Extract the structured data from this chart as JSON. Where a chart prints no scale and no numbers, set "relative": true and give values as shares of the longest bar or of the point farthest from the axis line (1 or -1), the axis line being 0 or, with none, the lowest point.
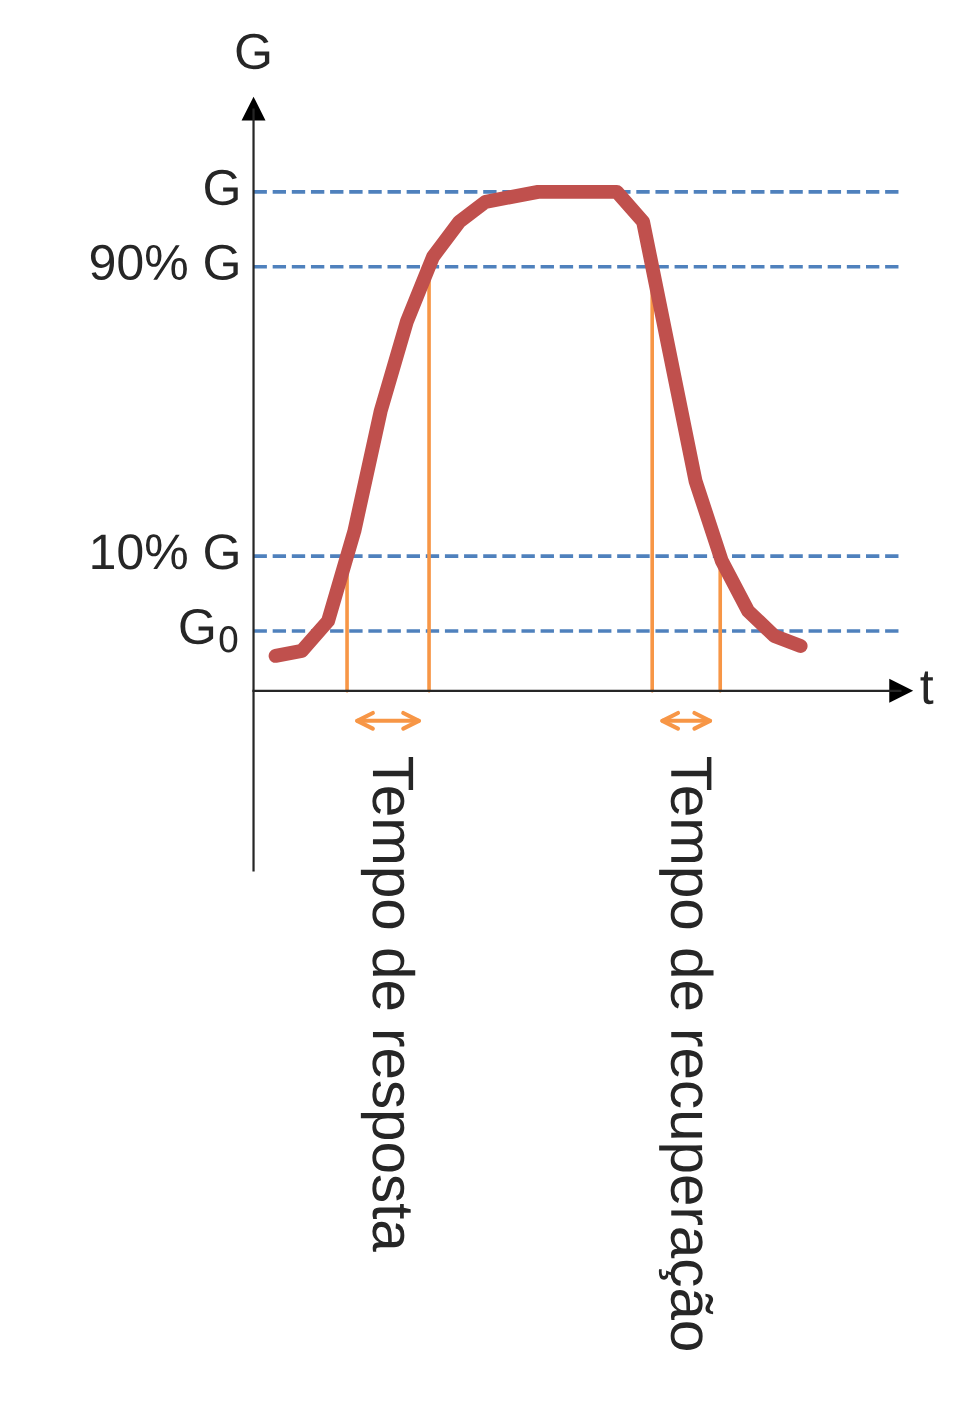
{
  "chart_data": {
    "type": "line",
    "relative": true,
    "xlabel": "t",
    "ylabel": "G",
    "categories": [
      null,
      null,
      null,
      null,
      null,
      null,
      null,
      null,
      null,
      null,
      null,
      null,
      null,
      null,
      null,
      null,
      null,
      null,
      null,
      null,
      null
    ],
    "series": [
      {
        "color": "#c0504d",
        "values": [
          0.07,
          0.08,
          0.14,
          0.32,
          0.56,
          0.74,
          0.87,
          0.94,
          0.98,
          0.99,
          1.0,
          1.0,
          1.0,
          1.0,
          0.94,
          0.68,
          0.42,
          0.26,
          0.16,
          0.11,
          0.09
        ]
      }
    ],
    "ref_lines": [
      {
        "axis": "y",
        "value": 1.0,
        "label": "G",
        "color": "#4f81bd",
        "line_style": "dashed"
      },
      {
        "axis": "y",
        "value": 0.85,
        "label": "90% G",
        "color": "#4f81bd",
        "line_style": "dashed"
      },
      {
        "axis": "y",
        "value": 0.27,
        "label": "10% G",
        "color": "#4f81bd",
        "line_style": "dashed"
      },
      {
        "axis": "y",
        "value": 0.12,
        "label": "G$_{0}$",
        "color": "#4f81bd",
        "line_style": "dashed"
      }
    ],
    "annotations": [
      "Tempo de resposta",
      "Tempo de recuperação"
    ],
    "legend": false,
    "marker": "none",
    "line_style": "solid"
  }
}
